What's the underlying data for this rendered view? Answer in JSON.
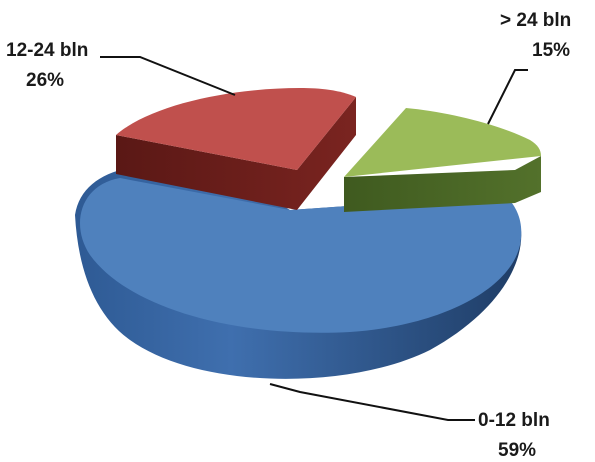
{
  "chart_data": {
    "type": "pie",
    "style": "3d-exploded",
    "title": "",
    "slices": [
      {
        "label": "0-12 bln",
        "value": 59,
        "value_label": "59%",
        "color": "#4F81BD"
      },
      {
        "label": "12-24 bln",
        "value": 26,
        "value_label": "26%",
        "color": "#C0504D"
      },
      {
        "label": "> 24 bln",
        "value": 15,
        "value_label": "15%",
        "color": "#9BBB59"
      }
    ],
    "legend": "none",
    "grid": false
  }
}
